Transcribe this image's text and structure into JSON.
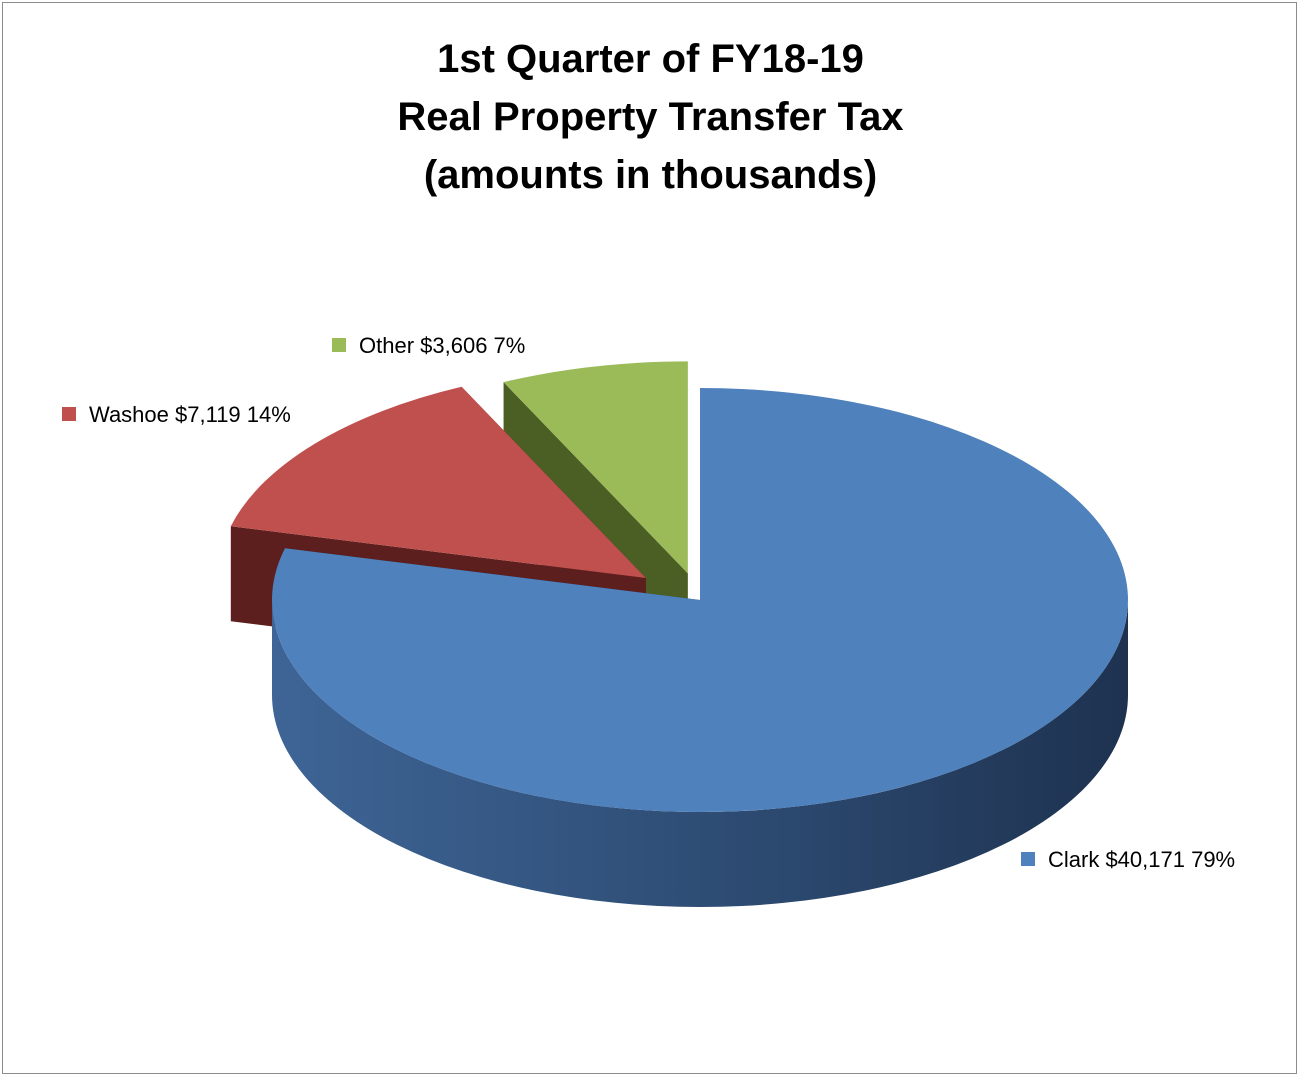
{
  "chart_data": {
    "type": "pie",
    "title_lines": [
      "1st Quarter of FY18-19",
      "Real Property Transfer Tax",
      "(amounts in thousands)"
    ],
    "slices": [
      {
        "name": "Clark",
        "value": 40171,
        "value_label": "$40,171",
        "percent": 79,
        "percent_label": "79%",
        "color": "#4F81BD",
        "side_color": "#2E4A73",
        "exploded": false
      },
      {
        "name": "Washoe",
        "value": 7119,
        "value_label": "$7,119",
        "percent": 14,
        "percent_label": "14%",
        "color": "#C0504D",
        "side_color": "#5C1F1D",
        "exploded": true
      },
      {
        "name": "Other",
        "value": 3606,
        "value_label": "$3,606",
        "percent": 7,
        "percent_label": "7%",
        "color": "#9BBB59",
        "side_color": "#4B5E24",
        "exploded": true
      }
    ],
    "style": "3d-pie",
    "legend": "data-labels-beside-slices"
  }
}
